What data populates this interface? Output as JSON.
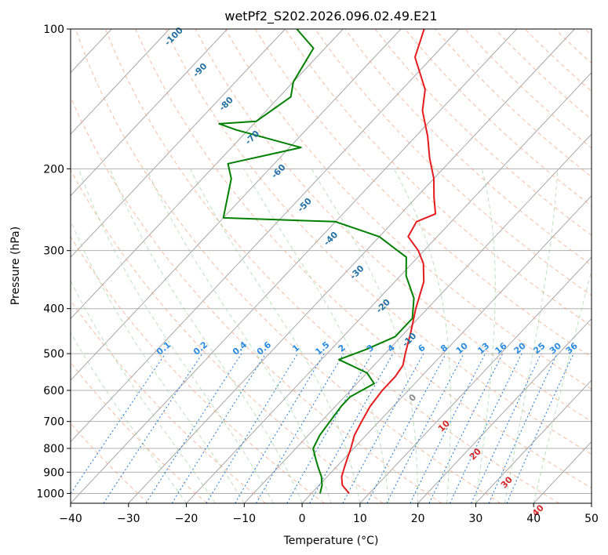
{
  "chart_data": {
    "type": "line",
    "subtype": "skew-t log-p diagram",
    "title": "wetPf2_S202.2026.096.02.49.E21",
    "xlabel": "Temperature (°C)",
    "ylabel": "Pressure (hPa)",
    "xlim": [
      -40,
      50
    ],
    "ylim": [
      1050,
      100
    ],
    "y_scale": "log",
    "grid": true,
    "x_ticks": [
      "−40",
      "−30",
      "−20",
      "−10",
      "0",
      "10",
      "20",
      "30",
      "40",
      "50"
    ],
    "y_ticks": [
      "100",
      "200",
      "300",
      "400",
      "500",
      "600",
      "700",
      "800",
      "900",
      "1000"
    ],
    "isotherm_labels": [
      "-100",
      "-90",
      "-80",
      "-70",
      "-60",
      "-50",
      "-40",
      "-30",
      "-20",
      "-10",
      "0",
      "10",
      "20",
      "30",
      "40"
    ],
    "mixing_ratio_labels": [
      "0.1",
      "0.2",
      "0.4",
      "0.6",
      "1",
      "1.5",
      "2",
      "3",
      "4",
      "6",
      "8",
      "10",
      "13",
      "16",
      "20",
      "25",
      "30",
      "36"
    ],
    "series": [
      {
        "name": "Temperature",
        "color": "#e41a1c",
        "points": [
          [
            6.5,
            1000
          ],
          [
            4,
            960
          ],
          [
            2.5,
            920
          ],
          [
            1.5,
            880
          ],
          [
            0.5,
            840
          ],
          [
            -0.5,
            800
          ],
          [
            -2,
            750
          ],
          [
            -3,
            700
          ],
          [
            -4,
            650
          ],
          [
            -4.5,
            600
          ],
          [
            -4.5,
            560
          ],
          [
            -5,
            530
          ],
          [
            -6.5,
            500
          ],
          [
            -9,
            450
          ],
          [
            -12,
            400
          ],
          [
            -15,
            350
          ],
          [
            -18,
            320
          ],
          [
            -21,
            300
          ],
          [
            -25,
            280
          ],
          [
            -26,
            260
          ],
          [
            -24,
            250
          ],
          [
            -27,
            230
          ],
          [
            -30,
            210
          ],
          [
            -34,
            190
          ],
          [
            -38,
            170
          ],
          [
            -43,
            150
          ],
          [
            -46,
            135
          ],
          [
            -53,
            115
          ],
          [
            -56,
            100
          ]
        ]
      },
      {
        "name": "Dewpoint",
        "color": "#008000",
        "points": [
          [
            1.5,
            1000
          ],
          [
            0.5,
            960
          ],
          [
            -1,
            920
          ],
          [
            -3,
            880
          ],
          [
            -5,
            840
          ],
          [
            -7,
            800
          ],
          [
            -8,
            750
          ],
          [
            -8.5,
            700
          ],
          [
            -9,
            650
          ],
          [
            -9,
            620
          ],
          [
            -7,
            580
          ],
          [
            -10,
            550
          ],
          [
            -17,
            515
          ],
          [
            -14,
            490
          ],
          [
            -11,
            460
          ],
          [
            -11,
            420
          ],
          [
            -14,
            380
          ],
          [
            -19,
            340
          ],
          [
            -22,
            310
          ],
          [
            -30,
            280
          ],
          [
            -40,
            260
          ],
          [
            -60,
            255
          ],
          [
            -65,
            210
          ],
          [
            -68,
            195
          ],
          [
            -58,
            180
          ],
          [
            -72,
            165
          ],
          [
            -76,
            160
          ],
          [
            -70,
            158
          ],
          [
            -68,
            140
          ],
          [
            -70,
            130
          ],
          [
            -72,
            110
          ],
          [
            -78,
            100
          ]
        ]
      }
    ]
  }
}
